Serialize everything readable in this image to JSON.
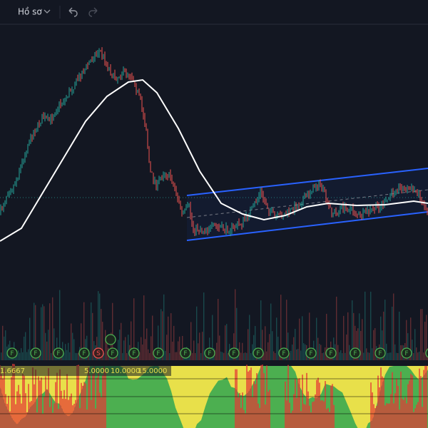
{
  "toolbar": {
    "profile": "Hồ sơ"
  },
  "markers": [
    {
      "label": "F"
    },
    {
      "label": "F"
    },
    {
      "label": "F"
    },
    {
      "label": "F"
    },
    {
      "label": "S"
    },
    {
      "label": "F"
    },
    {
      "label": "F"
    },
    {
      "label": "F"
    },
    {
      "label": "F"
    },
    {
      "label": "F"
    },
    {
      "label": "F"
    },
    {
      "label": "F"
    },
    {
      "label": "F"
    },
    {
      "label": "F"
    },
    {
      "label": "F"
    },
    {
      "label": "F"
    },
    {
      "label": "F"
    },
    {
      "label": "F"
    },
    {
      "label": "F"
    }
  ],
  "indicator": {
    "labels": [
      "1.6667",
      "5.0000",
      "10.0000",
      "15.0000"
    ]
  }
}
